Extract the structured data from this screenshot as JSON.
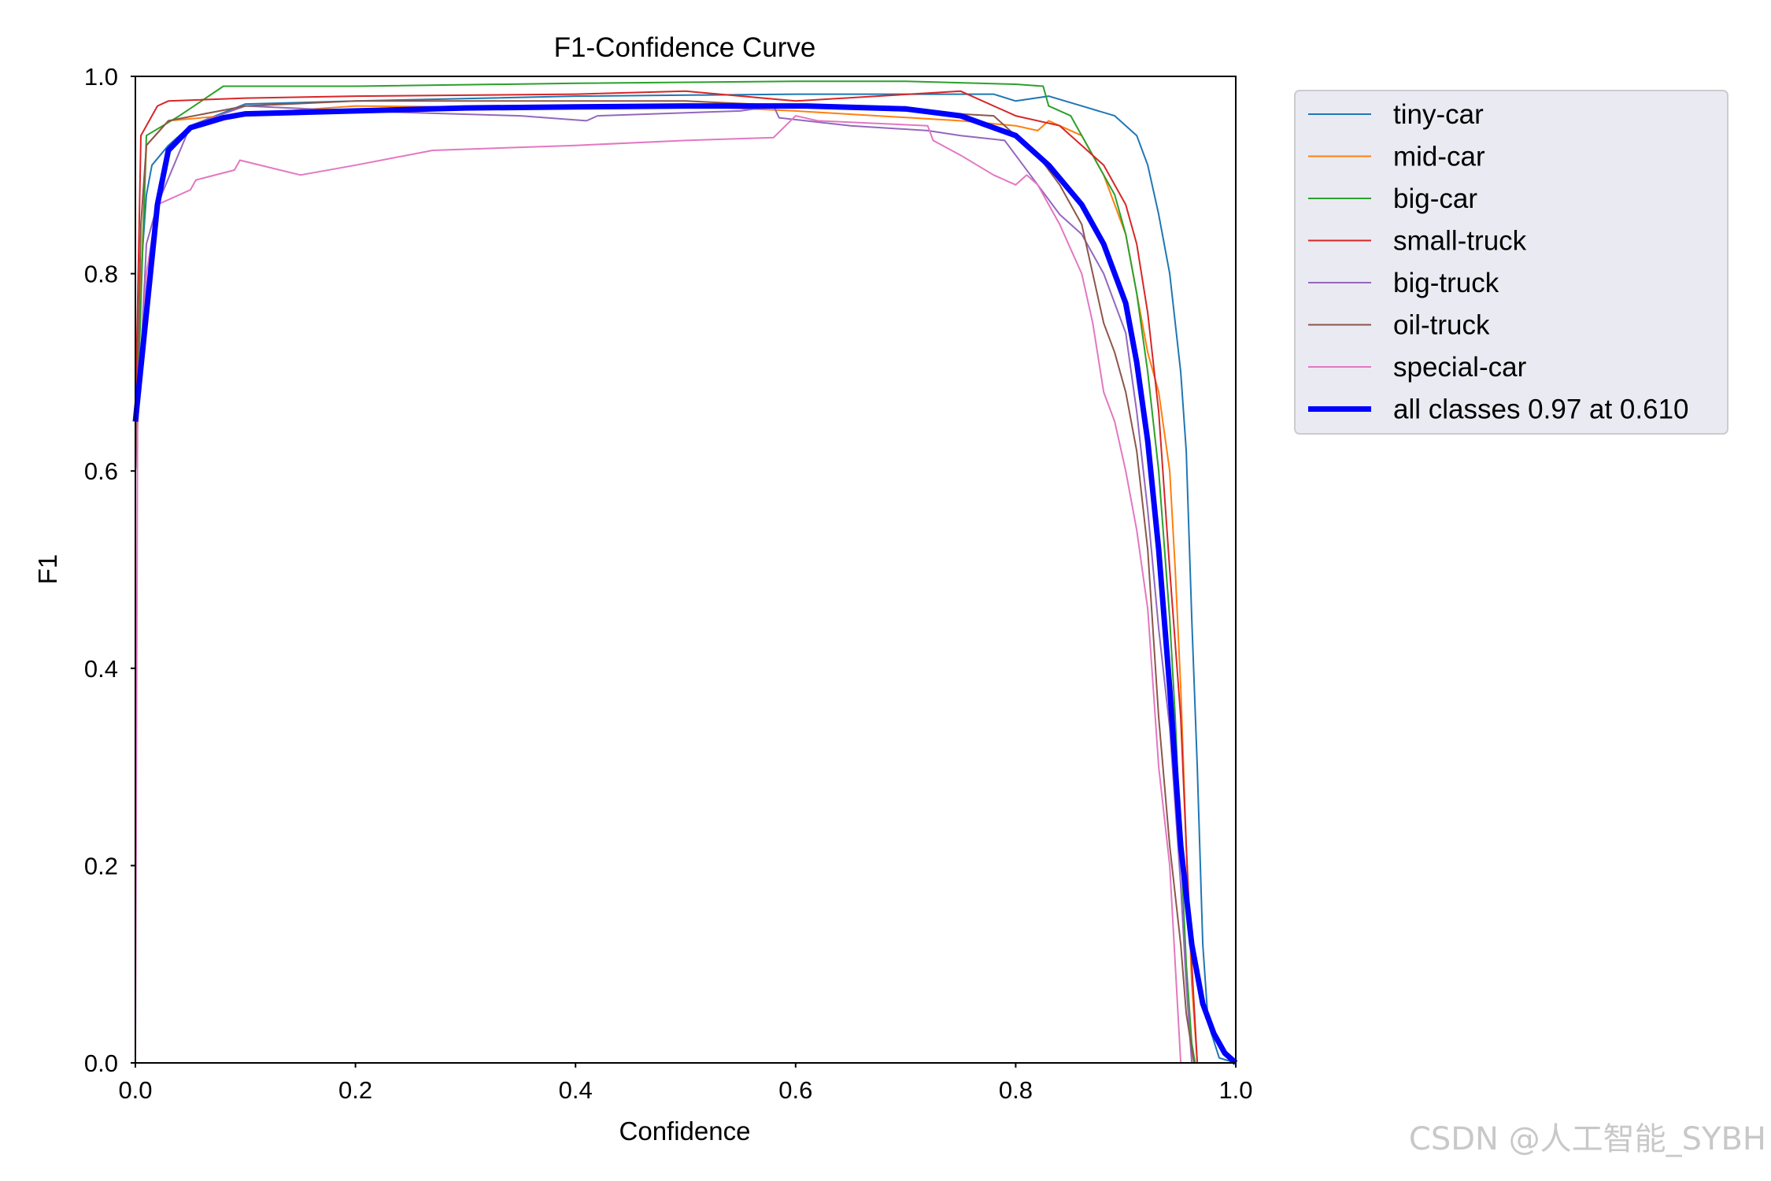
{
  "chart_data": {
    "type": "line",
    "title": "F1-Confidence Curve",
    "xlabel": "Confidence",
    "ylabel": "F1",
    "xlim": [
      0.0,
      1.0
    ],
    "ylim": [
      0.0,
      1.0
    ],
    "xticks": [
      "0.0",
      "0.2",
      "0.4",
      "0.6",
      "0.8",
      "1.0"
    ],
    "yticks": [
      "0.0",
      "0.2",
      "0.4",
      "0.6",
      "0.8",
      "1.0"
    ],
    "grid": false,
    "legend_position": "outside-top-right",
    "series": [
      {
        "name": "tiny-car",
        "color": "#1f77b4",
        "width": 2,
        "points": [
          [
            0.0,
            0.6
          ],
          [
            0.005,
            0.8
          ],
          [
            0.01,
            0.88
          ],
          [
            0.015,
            0.91
          ],
          [
            0.03,
            0.93
          ],
          [
            0.05,
            0.95
          ],
          [
            0.1,
            0.972
          ],
          [
            0.2,
            0.975
          ],
          [
            0.4,
            0.98
          ],
          [
            0.6,
            0.982
          ],
          [
            0.78,
            0.982
          ],
          [
            0.8,
            0.975
          ],
          [
            0.83,
            0.98
          ],
          [
            0.86,
            0.97
          ],
          [
            0.89,
            0.96
          ],
          [
            0.91,
            0.94
          ],
          [
            0.92,
            0.91
          ],
          [
            0.93,
            0.86
          ],
          [
            0.94,
            0.8
          ],
          [
            0.95,
            0.7
          ],
          [
            0.955,
            0.62
          ],
          [
            0.96,
            0.45
          ],
          [
            0.965,
            0.3
          ],
          [
            0.97,
            0.12
          ],
          [
            0.975,
            0.04
          ],
          [
            0.985,
            0.005
          ],
          [
            1.0,
            0.0
          ]
        ]
      },
      {
        "name": "mid-car",
        "color": "#ff7f0e",
        "width": 2,
        "points": [
          [
            0.0,
            0.65
          ],
          [
            0.01,
            0.93
          ],
          [
            0.03,
            0.955
          ],
          [
            0.1,
            0.962
          ],
          [
            0.2,
            0.97
          ],
          [
            0.4,
            0.968
          ],
          [
            0.5,
            0.97
          ],
          [
            0.6,
            0.965
          ],
          [
            0.75,
            0.955
          ],
          [
            0.8,
            0.95
          ],
          [
            0.82,
            0.945
          ],
          [
            0.83,
            0.955
          ],
          [
            0.86,
            0.94
          ],
          [
            0.88,
            0.9
          ],
          [
            0.9,
            0.84
          ],
          [
            0.91,
            0.78
          ],
          [
            0.92,
            0.72
          ],
          [
            0.93,
            0.68
          ],
          [
            0.94,
            0.6
          ],
          [
            0.945,
            0.5
          ],
          [
            0.95,
            0.38
          ],
          [
            0.955,
            0.22
          ],
          [
            0.96,
            0.08
          ],
          [
            0.965,
            0.0
          ]
        ]
      },
      {
        "name": "big-car",
        "color": "#2ca02c",
        "width": 2,
        "points": [
          [
            0.0,
            0.6
          ],
          [
            0.01,
            0.94
          ],
          [
            0.04,
            0.96
          ],
          [
            0.06,
            0.975
          ],
          [
            0.08,
            0.99
          ],
          [
            0.2,
            0.99
          ],
          [
            0.4,
            0.993
          ],
          [
            0.6,
            0.995
          ],
          [
            0.7,
            0.995
          ],
          [
            0.8,
            0.992
          ],
          [
            0.825,
            0.99
          ],
          [
            0.83,
            0.97
          ],
          [
            0.85,
            0.96
          ],
          [
            0.87,
            0.92
          ],
          [
            0.89,
            0.88
          ],
          [
            0.9,
            0.84
          ],
          [
            0.91,
            0.78
          ],
          [
            0.92,
            0.7
          ],
          [
            0.93,
            0.6
          ],
          [
            0.94,
            0.45
          ],
          [
            0.945,
            0.35
          ],
          [
            0.95,
            0.22
          ],
          [
            0.955,
            0.1
          ],
          [
            0.96,
            0.02
          ],
          [
            0.963,
            0.0
          ]
        ]
      },
      {
        "name": "small-truck",
        "color": "#d62728",
        "width": 2,
        "points": [
          [
            0.0,
            0.65
          ],
          [
            0.005,
            0.94
          ],
          [
            0.01,
            0.95
          ],
          [
            0.02,
            0.97
          ],
          [
            0.03,
            0.975
          ],
          [
            0.1,
            0.978
          ],
          [
            0.2,
            0.98
          ],
          [
            0.4,
            0.982
          ],
          [
            0.5,
            0.985
          ],
          [
            0.6,
            0.975
          ],
          [
            0.75,
            0.985
          ],
          [
            0.8,
            0.96
          ],
          [
            0.84,
            0.95
          ],
          [
            0.86,
            0.93
          ],
          [
            0.88,
            0.91
          ],
          [
            0.9,
            0.87
          ],
          [
            0.91,
            0.83
          ],
          [
            0.92,
            0.76
          ],
          [
            0.93,
            0.66
          ],
          [
            0.94,
            0.5
          ],
          [
            0.95,
            0.35
          ],
          [
            0.955,
            0.22
          ],
          [
            0.96,
            0.1
          ],
          [
            0.965,
            0.0
          ]
        ]
      },
      {
        "name": "big-truck",
        "color": "#9467bd",
        "width": 2,
        "points": [
          [
            0.0,
            0.6
          ],
          [
            0.01,
            0.83
          ],
          [
            0.02,
            0.87
          ],
          [
            0.05,
            0.95
          ],
          [
            0.1,
            0.97
          ],
          [
            0.2,
            0.965
          ],
          [
            0.35,
            0.96
          ],
          [
            0.41,
            0.955
          ],
          [
            0.42,
            0.96
          ],
          [
            0.55,
            0.965
          ],
          [
            0.58,
            0.97
          ],
          [
            0.585,
            0.958
          ],
          [
            0.65,
            0.95
          ],
          [
            0.72,
            0.945
          ],
          [
            0.75,
            0.94
          ],
          [
            0.79,
            0.935
          ],
          [
            0.8,
            0.92
          ],
          [
            0.82,
            0.89
          ],
          [
            0.84,
            0.86
          ],
          [
            0.86,
            0.84
          ],
          [
            0.88,
            0.8
          ],
          [
            0.9,
            0.74
          ],
          [
            0.91,
            0.66
          ],
          [
            0.92,
            0.56
          ],
          [
            0.93,
            0.44
          ],
          [
            0.94,
            0.34
          ],
          [
            0.95,
            0.18
          ],
          [
            0.955,
            0.08
          ],
          [
            0.96,
            0.0
          ]
        ]
      },
      {
        "name": "oil-truck",
        "color": "#8c564b",
        "width": 2,
        "points": [
          [
            0.0,
            0.6
          ],
          [
            0.005,
            0.85
          ],
          [
            0.01,
            0.93
          ],
          [
            0.03,
            0.955
          ],
          [
            0.1,
            0.97
          ],
          [
            0.2,
            0.975
          ],
          [
            0.5,
            0.975
          ],
          [
            0.6,
            0.97
          ],
          [
            0.7,
            0.965
          ],
          [
            0.78,
            0.96
          ],
          [
            0.8,
            0.94
          ],
          [
            0.82,
            0.92
          ],
          [
            0.84,
            0.89
          ],
          [
            0.86,
            0.85
          ],
          [
            0.87,
            0.8
          ],
          [
            0.88,
            0.75
          ],
          [
            0.89,
            0.72
          ],
          [
            0.9,
            0.68
          ],
          [
            0.91,
            0.62
          ],
          [
            0.92,
            0.52
          ],
          [
            0.93,
            0.35
          ],
          [
            0.94,
            0.22
          ],
          [
            0.95,
            0.12
          ],
          [
            0.955,
            0.05
          ],
          [
            0.962,
            0.0
          ]
        ]
      },
      {
        "name": "special-car",
        "color": "#e377c2",
        "width": 2,
        "points": [
          [
            0.0,
            0.0
          ],
          [
            0.002,
            0.65
          ],
          [
            0.01,
            0.8
          ],
          [
            0.02,
            0.87
          ],
          [
            0.05,
            0.885
          ],
          [
            0.055,
            0.895
          ],
          [
            0.09,
            0.905
          ],
          [
            0.095,
            0.915
          ],
          [
            0.15,
            0.9
          ],
          [
            0.2,
            0.91
          ],
          [
            0.27,
            0.925
          ],
          [
            0.4,
            0.93
          ],
          [
            0.5,
            0.935
          ],
          [
            0.58,
            0.938
          ],
          [
            0.6,
            0.96
          ],
          [
            0.62,
            0.955
          ],
          [
            0.72,
            0.95
          ],
          [
            0.725,
            0.935
          ],
          [
            0.75,
            0.92
          ],
          [
            0.78,
            0.9
          ],
          [
            0.8,
            0.89
          ],
          [
            0.81,
            0.9
          ],
          [
            0.82,
            0.89
          ],
          [
            0.84,
            0.85
          ],
          [
            0.86,
            0.8
          ],
          [
            0.87,
            0.75
          ],
          [
            0.88,
            0.68
          ],
          [
            0.89,
            0.65
          ],
          [
            0.9,
            0.6
          ],
          [
            0.91,
            0.54
          ],
          [
            0.92,
            0.46
          ],
          [
            0.93,
            0.3
          ],
          [
            0.94,
            0.2
          ],
          [
            0.945,
            0.1
          ],
          [
            0.95,
            0.0
          ]
        ]
      },
      {
        "name": "all classes 0.97 at 0.610",
        "color": "#0000ff",
        "width": 7,
        "points": [
          [
            0.0,
            0.65
          ],
          [
            0.01,
            0.76
          ],
          [
            0.02,
            0.87
          ],
          [
            0.03,
            0.925
          ],
          [
            0.05,
            0.948
          ],
          [
            0.08,
            0.958
          ],
          [
            0.1,
            0.962
          ],
          [
            0.2,
            0.965
          ],
          [
            0.3,
            0.968
          ],
          [
            0.4,
            0.969
          ],
          [
            0.5,
            0.97
          ],
          [
            0.61,
            0.97
          ],
          [
            0.7,
            0.967
          ],
          [
            0.75,
            0.96
          ],
          [
            0.8,
            0.94
          ],
          [
            0.83,
            0.91
          ],
          [
            0.86,
            0.87
          ],
          [
            0.88,
            0.83
          ],
          [
            0.9,
            0.77
          ],
          [
            0.91,
            0.71
          ],
          [
            0.92,
            0.63
          ],
          [
            0.93,
            0.52
          ],
          [
            0.94,
            0.38
          ],
          [
            0.95,
            0.22
          ],
          [
            0.96,
            0.12
          ],
          [
            0.97,
            0.06
          ],
          [
            0.98,
            0.03
          ],
          [
            0.99,
            0.01
          ],
          [
            1.0,
            0.0
          ]
        ]
      }
    ]
  },
  "watermark": "CSDN @人工智能_SYBH"
}
